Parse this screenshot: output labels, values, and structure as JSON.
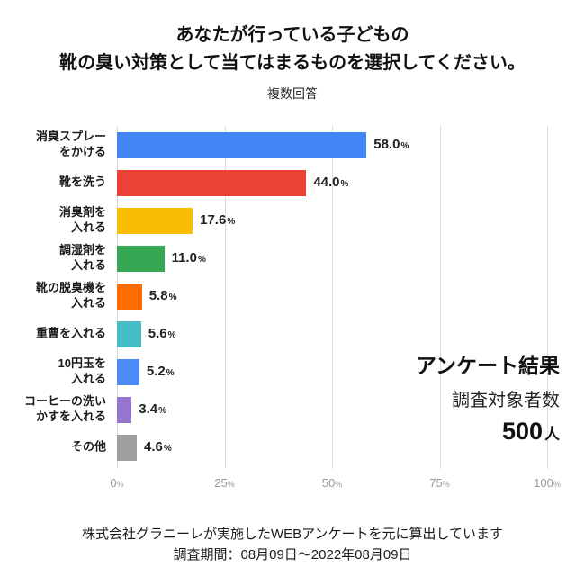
{
  "title": {
    "line1": "あなたが行っている子どもの",
    "line2": "靴の臭い対策として当てはまるものを選択してください。"
  },
  "subtitle": "複数回答",
  "chart_data": {
    "type": "bar",
    "orientation": "horizontal",
    "title": "あなたが行っている子どもの靴の臭い対策として当てはまるものを選択してください。",
    "subtitle": "複数回答",
    "categories": [
      "消臭スプレーをかける",
      "靴を洗う",
      "消臭剤を入れる",
      "調湿剤を入れる",
      "靴の脱臭機を入れる",
      "重曹を入れる",
      "10円玉を入れる",
      "コーヒーの洗いかすを入れる",
      "その他"
    ],
    "category_lines": [
      [
        "消臭スプレー",
        "をかける"
      ],
      [
        "靴を洗う"
      ],
      [
        "消臭剤を",
        "入れる"
      ],
      [
        "調湿剤を",
        "入れる"
      ],
      [
        "靴の脱臭機を",
        "入れる"
      ],
      [
        "重曹を入れる"
      ],
      [
        "10円玉を",
        "入れる"
      ],
      [
        "コーヒーの洗い",
        "かすを入れる"
      ],
      [
        "その他"
      ]
    ],
    "values": [
      58.0,
      44.0,
      17.6,
      11.0,
      5.8,
      5.6,
      5.2,
      3.4,
      4.6
    ],
    "value_labels": [
      "58.0",
      "44.0",
      "17.6",
      "11.0",
      "5.8",
      "5.6",
      "5.2",
      "3.4",
      "4.6"
    ],
    "unit": "%",
    "bar_colors": [
      "#4285F4",
      "#EA4335",
      "#FBBC04",
      "#34A853",
      "#FF6D01",
      "#46BDC6",
      "#4C8BF5",
      "#9575CD",
      "#9E9E9E"
    ],
    "xlim": [
      0,
      100
    ],
    "x_ticks": [
      0,
      25,
      50,
      75,
      100
    ],
    "x_tick_labels": [
      "0",
      "25",
      "50",
      "75",
      "100"
    ],
    "grid": true,
    "legend": "none"
  },
  "annotation": {
    "line1": "アンケート結果",
    "line2": "調査対象者数",
    "count_value": "500",
    "count_unit": "人"
  },
  "footer": {
    "line1": "株式会社グラニーレが実施したWEBアンケートを元に算出しています",
    "line2": "調査期間：08月09日～2022年08月09日"
  }
}
